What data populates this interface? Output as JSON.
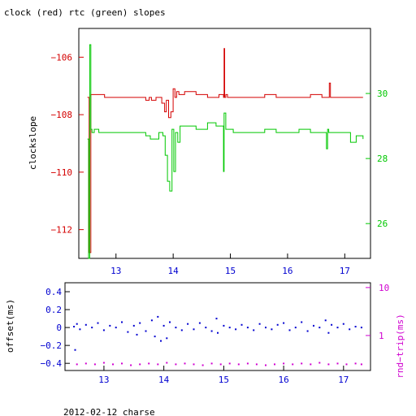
{
  "title": "clock (red) rtc (green) slopes",
  "footer": "2012-02-12 charse",
  "colors": {
    "clock": "#d40000",
    "rtc": "#00c800",
    "offset": "#0000d0",
    "rtt": "#d000d0",
    "axis": "#000000"
  },
  "chart_data": [
    {
      "type": "line",
      "ylabel": "clockslope",
      "xlim": [
        12.35,
        17.45
      ],
      "ylim_left": [
        -113.0,
        -105.0
      ],
      "ylim_right": [
        24.93,
        32.0
      ],
      "x_ticks": [
        13,
        14,
        15,
        16,
        17
      ],
      "x_tick_labels": [
        "13",
        "14",
        "15",
        "16",
        "17"
      ],
      "y_ticks_left": [
        -112,
        -110,
        -108,
        -106
      ],
      "y_tick_labels_left": [
        "−112",
        "−110",
        "−108",
        "−106"
      ],
      "y_ticks_right": [
        26,
        28,
        30
      ],
      "y_tick_labels_right": [
        "26",
        "28",
        "30"
      ],
      "series": [
        {
          "name": "clock",
          "axis": "left",
          "x": [
            12.5,
            12.53,
            12.56,
            12.6,
            12.8,
            13.0,
            13.2,
            13.4,
            13.52,
            13.58,
            13.62,
            13.7,
            13.8,
            13.85,
            13.88,
            13.92,
            13.96,
            14.0,
            14.03,
            14.06,
            14.1,
            14.2,
            14.4,
            14.6,
            14.8,
            14.88,
            14.89,
            14.9,
            14.92,
            14.95,
            15.2,
            15.4,
            15.6,
            15.8,
            16.0,
            16.2,
            16.4,
            16.6,
            16.7,
            16.73,
            16.75,
            16.8,
            17.0,
            17.2,
            17.32
          ],
          "values": [
            -107.4,
            -112.8,
            -107.3,
            -107.3,
            -107.4,
            -107.4,
            -107.4,
            -107.4,
            -107.5,
            -107.4,
            -107.5,
            -107.4,
            -107.6,
            -107.9,
            -107.5,
            -108.1,
            -107.9,
            -107.1,
            -107.4,
            -107.2,
            -107.3,
            -107.2,
            -107.3,
            -107.4,
            -107.3,
            -107.4,
            -105.7,
            -107.4,
            -107.3,
            -107.4,
            -107.4,
            -107.4,
            -107.3,
            -107.4,
            -107.4,
            -107.4,
            -107.3,
            -107.4,
            -107.4,
            -106.9,
            -107.4,
            -107.4,
            -107.4,
            -107.4,
            -107.4
          ]
        },
        {
          "name": "rtc",
          "axis": "right",
          "x": [
            12.5,
            12.52,
            12.54,
            12.56,
            12.58,
            12.62,
            12.7,
            12.9,
            13.1,
            13.3,
            13.4,
            13.52,
            13.6,
            13.75,
            13.82,
            13.86,
            13.9,
            13.94,
            13.98,
            14.01,
            14.04,
            14.08,
            14.12,
            14.2,
            14.4,
            14.6,
            14.75,
            14.85,
            14.88,
            14.89,
            14.92,
            14.95,
            15.05,
            15.2,
            15.4,
            15.6,
            15.8,
            16.0,
            16.2,
            16.4,
            16.6,
            16.68,
            16.7,
            16.72,
            16.8,
            17.0,
            17.1,
            17.2,
            17.32
          ],
          "values": [
            28.6,
            24.93,
            31.5,
            28.9,
            28.8,
            28.9,
            28.8,
            28.8,
            28.8,
            28.8,
            28.8,
            28.7,
            28.6,
            28.8,
            28.7,
            28.1,
            27.3,
            27.0,
            28.9,
            27.6,
            28.8,
            28.5,
            29.0,
            29.0,
            28.9,
            29.1,
            29.0,
            29.0,
            27.6,
            29.4,
            28.9,
            28.9,
            28.8,
            28.8,
            28.8,
            28.9,
            28.8,
            28.8,
            28.9,
            28.8,
            28.8,
            28.3,
            28.9,
            28.8,
            28.8,
            28.8,
            28.5,
            28.7,
            28.6
          ]
        }
      ]
    },
    {
      "type": "scatter",
      "ylabel": "offset(ms)",
      "ylabel_right": "rnd−trip(ms)",
      "xlim": [
        12.35,
        17.45
      ],
      "ylim_left": [
        -0.48,
        0.5
      ],
      "ylim_right_log10": [
        -0.73,
        1.1
      ],
      "x_ticks": [
        13,
        14,
        15,
        16,
        17
      ],
      "x_tick_labels": [
        "13",
        "14",
        "15",
        "16",
        "17"
      ],
      "y_ticks_left": [
        -0.4,
        -0.2,
        0,
        0.2,
        0.4
      ],
      "y_tick_labels_left": [
        "−0.4",
        "−0.2",
        "0",
        "0.2",
        "0.4"
      ],
      "y_ticks_right": [
        1,
        10
      ],
      "y_tick_labels_right": [
        "1",
        "10"
      ],
      "series": [
        {
          "name": "offset",
          "axis": "left",
          "x": [
            12.5,
            12.52,
            12.55,
            12.6,
            12.7,
            12.8,
            12.9,
            13.0,
            13.1,
            13.2,
            13.3,
            13.4,
            13.5,
            13.55,
            13.6,
            13.7,
            13.8,
            13.85,
            13.9,
            13.95,
            14.0,
            14.05,
            14.1,
            14.2,
            14.3,
            14.4,
            14.5,
            14.6,
            14.7,
            14.8,
            14.88,
            14.9,
            15.0,
            15.1,
            15.2,
            15.3,
            15.4,
            15.5,
            15.6,
            15.7,
            15.8,
            15.9,
            16.0,
            16.1,
            16.2,
            16.3,
            16.4,
            16.5,
            16.6,
            16.7,
            16.75,
            16.8,
            16.9,
            17.0,
            17.1,
            17.2,
            17.3
          ],
          "values": [
            0.01,
            -0.25,
            0.04,
            -0.02,
            0.03,
            0.0,
            0.05,
            -0.03,
            0.02,
            0.0,
            0.06,
            -0.05,
            0.02,
            -0.08,
            0.05,
            -0.04,
            0.08,
            -0.1,
            0.12,
            -0.15,
            0.02,
            -0.12,
            0.06,
            0.0,
            -0.03,
            0.04,
            -0.02,
            0.05,
            0.0,
            -0.04,
            0.1,
            -0.06,
            0.02,
            0.0,
            -0.02,
            0.03,
            0.0,
            -0.03,
            0.04,
            0.0,
            -0.02,
            0.03,
            0.05,
            -0.03,
            0.0,
            0.06,
            -0.04,
            0.02,
            0.0,
            0.08,
            -0.06,
            0.03,
            0.0,
            0.04,
            -0.02,
            0.01,
            0.0
          ]
        },
        {
          "name": "rtt",
          "axis": "right",
          "x": [
            12.55,
            12.7,
            12.85,
            13.0,
            13.15,
            13.3,
            13.45,
            13.6,
            13.75,
            13.9,
            14.05,
            14.2,
            14.35,
            14.5,
            14.65,
            14.8,
            14.95,
            15.1,
            15.25,
            15.4,
            15.55,
            15.7,
            15.85,
            16.0,
            16.15,
            16.3,
            16.45,
            16.6,
            16.75,
            16.9,
            17.05,
            17.2,
            17.3
          ],
          "values": [
            0.25,
            0.26,
            0.25,
            0.27,
            0.25,
            0.26,
            0.24,
            0.25,
            0.26,
            0.25,
            0.27,
            0.25,
            0.26,
            0.25,
            0.24,
            0.26,
            0.25,
            0.26,
            0.25,
            0.26,
            0.25,
            0.24,
            0.25,
            0.26,
            0.25,
            0.26,
            0.25,
            0.27,
            0.25,
            0.26,
            0.25,
            0.26,
            0.25
          ]
        }
      ]
    }
  ]
}
